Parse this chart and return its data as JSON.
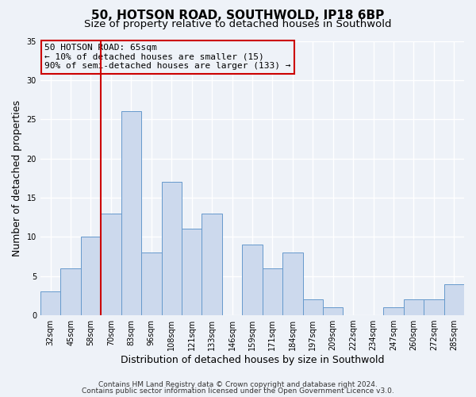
{
  "title": "50, HOTSON ROAD, SOUTHWOLD, IP18 6BP",
  "subtitle": "Size of property relative to detached houses in Southwold",
  "xlabel": "Distribution of detached houses by size in Southwold",
  "ylabel": "Number of detached properties",
  "categories": [
    "32sqm",
    "45sqm",
    "58sqm",
    "70sqm",
    "83sqm",
    "96sqm",
    "108sqm",
    "121sqm",
    "133sqm",
    "146sqm",
    "159sqm",
    "171sqm",
    "184sqm",
    "197sqm",
    "209sqm",
    "222sqm",
    "234sqm",
    "247sqm",
    "260sqm",
    "272sqm",
    "285sqm"
  ],
  "values": [
    3,
    6,
    10,
    13,
    26,
    8,
    17,
    11,
    13,
    0,
    9,
    6,
    8,
    2,
    1,
    0,
    0,
    1,
    2,
    2,
    4
  ],
  "bar_color": "#ccd9ed",
  "bar_edge_color": "#6699cc",
  "vline_x": 2.5,
  "vline_color": "#cc0000",
  "annotation_text": "50 HOTSON ROAD: 65sqm\n← 10% of detached houses are smaller (15)\n90% of semi-detached houses are larger (133) →",
  "annotation_box_color": "#cc0000",
  "ylim": [
    0,
    35
  ],
  "yticks": [
    0,
    5,
    10,
    15,
    20,
    25,
    30,
    35
  ],
  "footer1": "Contains HM Land Registry data © Crown copyright and database right 2024.",
  "footer2": "Contains public sector information licensed under the Open Government Licence v3.0.",
  "bg_color": "#eef2f8",
  "grid_color": "#ffffff",
  "title_fontsize": 11,
  "subtitle_fontsize": 9.5,
  "axis_label_fontsize": 9,
  "tick_fontsize": 7,
  "annotation_fontsize": 8,
  "footer_fontsize": 6.5
}
